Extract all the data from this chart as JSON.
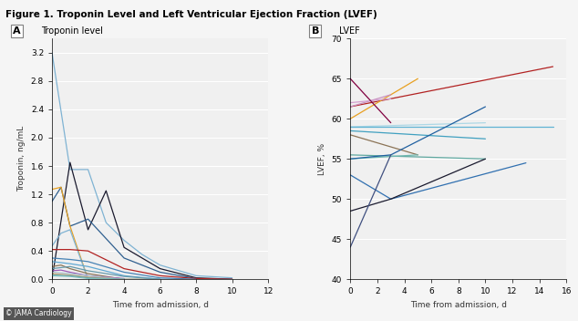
{
  "title": "Figure 1. Troponin Level and Left Ventricular Ejection Fraction (LVEF)",
  "panel_a_label": "A",
  "panel_a_title": "Troponin level",
  "panel_b_label": "B",
  "panel_b_title": "LVEF",
  "xlabel_a": "Time from admission, d",
  "xlabel_b": "Time from admission, d",
  "ylabel_a": "Troponin, ng/mL",
  "ylabel_b": "LVEF, %",
  "xlim_a": [
    0,
    12
  ],
  "xlim_b": [
    0,
    16
  ],
  "ylim_a": [
    0,
    3.4
  ],
  "ylim_b": [
    40,
    70
  ],
  "xticks_a": [
    0,
    2,
    4,
    6,
    8,
    10,
    12
  ],
  "xticks_b": [
    0,
    2,
    4,
    6,
    8,
    10,
    12,
    14,
    16
  ],
  "yticks_a": [
    0.0,
    0.4,
    0.8,
    1.2,
    1.6,
    2.0,
    2.4,
    2.8,
    3.2
  ],
  "yticks_b": [
    40,
    45,
    50,
    55,
    60,
    65,
    70
  ],
  "troponin_series": [
    {
      "x": [
        0,
        1,
        2,
        3,
        4,
        5,
        6,
        8,
        10
      ],
      "y": [
        3.2,
        1.55,
        1.55,
        0.8,
        0.55,
        0.35,
        0.2,
        0.05,
        0.02
      ],
      "color": "#7fb3d3"
    },
    {
      "x": [
        0,
        1,
        2,
        3,
        4,
        6,
        8,
        10
      ],
      "y": [
        0.0,
        1.65,
        0.7,
        1.25,
        0.45,
        0.15,
        0.02,
        0.0
      ],
      "color": "#1a1a2e"
    },
    {
      "x": [
        0,
        0.5,
        1,
        2,
        4,
        6,
        8,
        10
      ],
      "y": [
        1.1,
        1.3,
        0.75,
        0.85,
        0.3,
        0.1,
        0.01,
        0.0
      ],
      "color": "#2f5f8f"
    },
    {
      "x": [
        0,
        0.5,
        1,
        2,
        4,
        6
      ],
      "y": [
        1.27,
        1.3,
        0.75,
        0.0,
        0.0,
        0.0
      ],
      "color": "#e8a020"
    },
    {
      "x": [
        0,
        0.5,
        1,
        2,
        4,
        6,
        8
      ],
      "y": [
        0.47,
        0.65,
        0.7,
        0.0,
        0.0,
        0.0,
        0.0
      ],
      "color": "#7fb3d3"
    },
    {
      "x": [
        0,
        1,
        2,
        4,
        6,
        8,
        10
      ],
      "y": [
        0.42,
        0.42,
        0.4,
        0.15,
        0.05,
        0.01,
        0.0
      ],
      "color": "#b22222"
    },
    {
      "x": [
        0,
        1,
        2,
        4,
        6,
        8
      ],
      "y": [
        0.3,
        0.28,
        0.25,
        0.1,
        0.02,
        0.0
      ],
      "color": "#4682b4"
    },
    {
      "x": [
        0,
        1,
        2,
        4,
        6
      ],
      "y": [
        0.25,
        0.22,
        0.18,
        0.05,
        0.0
      ],
      "color": "#5fa8d3"
    },
    {
      "x": [
        0,
        0.5,
        1,
        2,
        4
      ],
      "y": [
        0.18,
        0.2,
        0.15,
        0.08,
        0.0
      ],
      "color": "#8b7355"
    },
    {
      "x": [
        0,
        1,
        2,
        4,
        6
      ],
      "y": [
        0.15,
        0.18,
        0.12,
        0.04,
        0.0
      ],
      "color": "#6699aa"
    },
    {
      "x": [
        0,
        0.5,
        1,
        2,
        4
      ],
      "y": [
        0.12,
        0.13,
        0.1,
        0.05,
        0.01
      ],
      "color": "#9b59b6"
    },
    {
      "x": [
        0,
        1,
        2,
        4
      ],
      "y": [
        0.1,
        0.08,
        0.05,
        0.0
      ],
      "color": "#aac4d0"
    },
    {
      "x": [
        0,
        1,
        2,
        4
      ],
      "y": [
        0.08,
        0.06,
        0.03,
        0.0
      ],
      "color": "#c8a87a"
    },
    {
      "x": [
        0,
        1,
        2,
        4
      ],
      "y": [
        0.06,
        0.05,
        0.02,
        0.0
      ],
      "color": "#5f9ea0"
    },
    {
      "x": [
        0,
        1,
        2,
        4
      ],
      "y": [
        0.05,
        0.04,
        0.01,
        0.0
      ],
      "color": "#7fbfbf"
    }
  ],
  "lvef_series": [
    {
      "x": [
        0,
        15
      ],
      "y": [
        61.5,
        66.5
      ],
      "color": "#b22222"
    },
    {
      "x": [
        0,
        5
      ],
      "y": [
        60.0,
        65.0
      ],
      "color": "#e8a020"
    },
    {
      "x": [
        0,
        3
      ],
      "y": [
        61.5,
        63.0
      ],
      "color": "#c890c0"
    },
    {
      "x": [
        0,
        3
      ],
      "y": [
        62.0,
        62.5
      ],
      "color": "#d4a0d0"
    },
    {
      "x": [
        0,
        3
      ],
      "y": [
        65.0,
        59.5
      ],
      "color": "#800040"
    },
    {
      "x": [
        0,
        10
      ],
      "y": [
        59.0,
        59.5
      ],
      "color": "#add8e6"
    },
    {
      "x": [
        0,
        15
      ],
      "y": [
        59.0,
        59.0
      ],
      "color": "#5fb3d3"
    },
    {
      "x": [
        0,
        10
      ],
      "y": [
        58.5,
        57.5
      ],
      "color": "#40a0c0"
    },
    {
      "x": [
        0,
        5
      ],
      "y": [
        58.0,
        55.5
      ],
      "color": "#8b7355"
    },
    {
      "x": [
        0,
        10
      ],
      "y": [
        55.5,
        55.0
      ],
      "color": "#5fa8a0"
    },
    {
      "x": [
        0,
        5
      ],
      "y": [
        55.0,
        55.5
      ],
      "color": "#70b8b0"
    },
    {
      "x": [
        0,
        3,
        10
      ],
      "y": [
        55.0,
        55.5,
        61.5
      ],
      "color": "#2060a0"
    },
    {
      "x": [
        0,
        3,
        13
      ],
      "y": [
        53.0,
        50.0,
        54.5
      ],
      "color": "#3070b0"
    },
    {
      "x": [
        0,
        3,
        10
      ],
      "y": [
        48.5,
        50.0,
        55.0
      ],
      "color": "#1a1a2e"
    },
    {
      "x": [
        0,
        3
      ],
      "y": [
        44.0,
        55.5
      ],
      "color": "#405080"
    }
  ],
  "bg_color": "#f5f5f5",
  "plot_bg": "#f0f0f0",
  "grid_color": "#ffffff",
  "title_color": "#000000",
  "label_color": "#333333"
}
